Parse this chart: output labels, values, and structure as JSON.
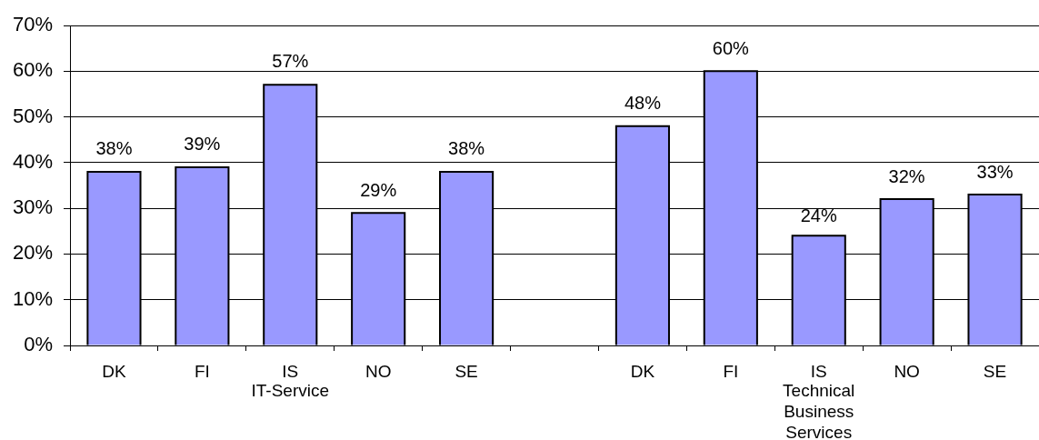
{
  "chart_data": {
    "type": "bar",
    "categories": [
      "DK",
      "FI",
      "IS",
      "NO",
      "SE",
      null,
      "DK",
      "FI",
      "IS",
      "NO",
      "SE"
    ],
    "values": [
      38,
      39,
      57,
      29,
      38,
      null,
      48,
      60,
      24,
      32,
      33
    ],
    "value_labels": [
      "38%",
      "39%",
      "57%",
      "29%",
      "38%",
      null,
      "48%",
      "60%",
      "24%",
      "32%",
      "33%"
    ],
    "color": "#9999ff",
    "ylim": [
      0,
      70
    ],
    "yticks": [
      {
        "value": 0,
        "label": "0%"
      },
      {
        "value": 10,
        "label": "10%"
      },
      {
        "value": 20,
        "label": "20%"
      },
      {
        "value": 30,
        "label": "30%"
      },
      {
        "value": 40,
        "label": "40%"
      },
      {
        "value": 50,
        "label": "50%"
      },
      {
        "value": 60,
        "label": "60%"
      },
      {
        "value": 70,
        "label": "70%"
      }
    ],
    "grid": "y",
    "annotations": [
      "IT-Service",
      "Technical Business Services"
    ]
  }
}
